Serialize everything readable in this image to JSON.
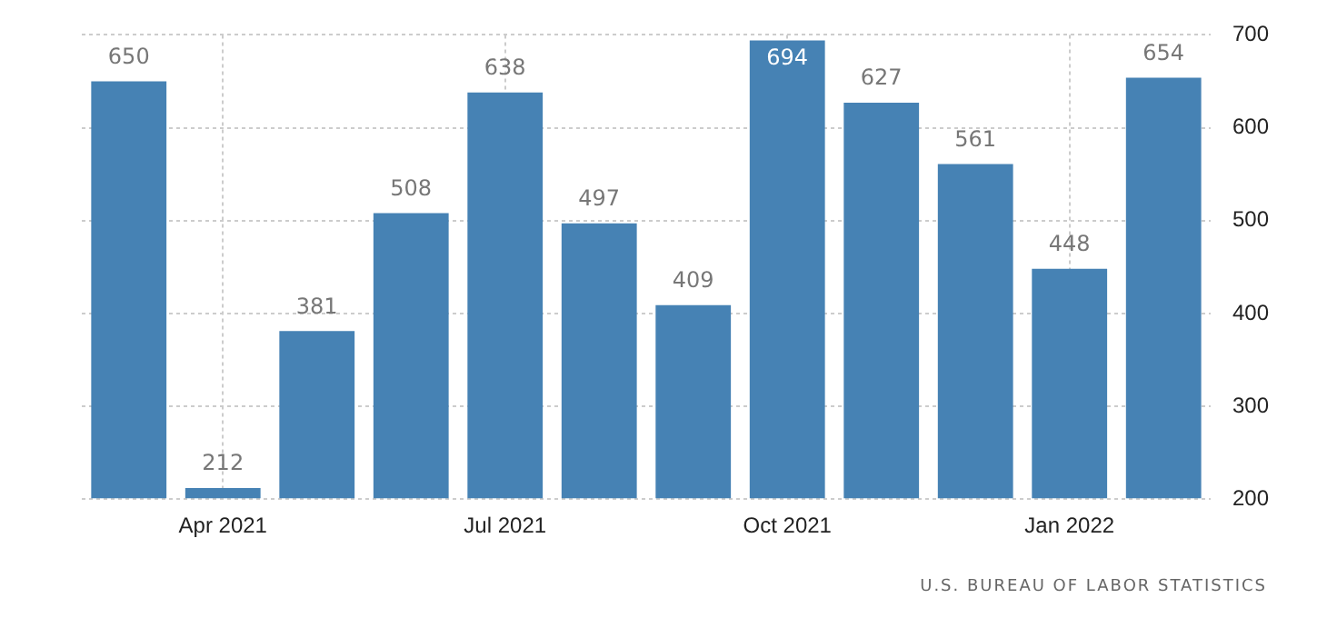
{
  "chart_data": {
    "type": "bar",
    "categories": [
      null,
      "Apr 2021",
      null,
      null,
      "Jul 2021",
      null,
      null,
      "Oct 2021",
      null,
      null,
      "Jan 2022",
      null
    ],
    "values": [
      650,
      212,
      381,
      508,
      638,
      497,
      409,
      694,
      627,
      561,
      448,
      654
    ],
    "color": "#4682b4",
    "ylim": [
      200,
      700
    ],
    "yticks": [
      200,
      300,
      400,
      500,
      600,
      700
    ],
    "grid": true,
    "data_labels": true,
    "annotations": [
      "U.S. BUREAU OF LABOR STATISTICS"
    ]
  }
}
